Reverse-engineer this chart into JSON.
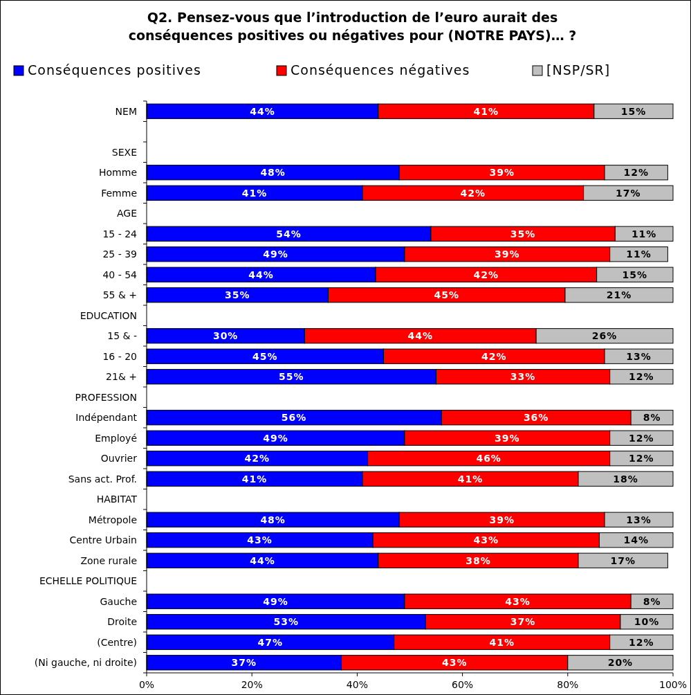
{
  "chart_data": {
    "type": "bar",
    "orientation": "horizontal",
    "stacked": true,
    "title": "Q2. Pensez-vous que l’introduction de l’euro aurait des conséquences positives ou négatives pour (NOTRE PAYS)… ?",
    "categories": [
      "NEM",
      null,
      "SEXE",
      "Homme",
      "Femme",
      "AGE",
      "15 - 24",
      "25 - 39",
      "40 - 54",
      "55 & +",
      "EDUCATION",
      "15 & -",
      "16 - 20",
      "21& +",
      "PROFESSION",
      "Indépendant",
      "Employé",
      "Ouvrier",
      "Sans act. Prof.",
      "HABITAT",
      "Métropole",
      "Centre Urbain",
      "Zone rurale",
      "ECHELLE POLITIQUE",
      "Gauche",
      "Droite",
      "(Centre)",
      "(Ni gauche, ni droite)"
    ],
    "series": [
      {
        "name": "Conséquences positives",
        "color": "#0000ff",
        "values": [
          44,
          null,
          null,
          48,
          41,
          null,
          54,
          49,
          43.5,
          34.5,
          null,
          30,
          45,
          55,
          null,
          56,
          49,
          42,
          41,
          null,
          48,
          43,
          44,
          null,
          49,
          53,
          47,
          37
        ],
        "value_labels": [
          "44%",
          null,
          null,
          "48%",
          "41%",
          null,
          "54%",
          "49%",
          "44%",
          "35%",
          null,
          "30%",
          "45%",
          "55%",
          null,
          "56%",
          "49%",
          "42%",
          "41%",
          null,
          "48%",
          "43%",
          "44%",
          null,
          "49%",
          "53%",
          "47%",
          "37%"
        ]
      },
      {
        "name": "Conséquences négatives",
        "color": "#ff0000",
        "values": [
          41,
          null,
          null,
          39,
          42,
          null,
          35,
          39,
          42,
          45,
          null,
          44,
          42,
          33,
          null,
          36,
          39,
          46,
          41,
          null,
          39,
          43,
          38,
          null,
          43,
          37,
          41,
          43
        ],
        "value_labels": [
          "41%",
          null,
          null,
          "39%",
          "42%",
          null,
          "35%",
          "39%",
          "42%",
          "45%",
          null,
          "44%",
          "42%",
          "33%",
          null,
          "36%",
          "39%",
          "46%",
          "41%",
          null,
          "39%",
          "43%",
          "38%",
          null,
          "43%",
          "37%",
          "41%",
          "43%"
        ]
      },
      {
        "name": "[NSP/SR]",
        "color": "#c0c0c0",
        "values": [
          15,
          null,
          null,
          12,
          17,
          null,
          11,
          11,
          14.5,
          20.5,
          null,
          26,
          13,
          12,
          null,
          8,
          12,
          12,
          18,
          null,
          13,
          14,
          17,
          null,
          8,
          10,
          12,
          20
        ],
        "value_labels": [
          "15%",
          null,
          null,
          "12%",
          "17%",
          null,
          "11%",
          "11%",
          "15%",
          "21%",
          null,
          "26%",
          "13%",
          "12%",
          null,
          "8%",
          "12%",
          "12%",
          "18%",
          null,
          "13%",
          "14%",
          "17%",
          null,
          "8%",
          "10%",
          "12%",
          "20%"
        ]
      }
    ],
    "xlim": [
      0,
      100
    ],
    "xticks": [
      {
        "value": 0,
        "label": "0%"
      },
      {
        "value": 20,
        "label": "20%"
      },
      {
        "value": 40,
        "label": "40%"
      },
      {
        "value": 60,
        "label": "60%"
      },
      {
        "value": 80,
        "label": "80%"
      },
      {
        "value": 100,
        "label": "100%"
      }
    ],
    "legend": "top",
    "grid": false
  }
}
